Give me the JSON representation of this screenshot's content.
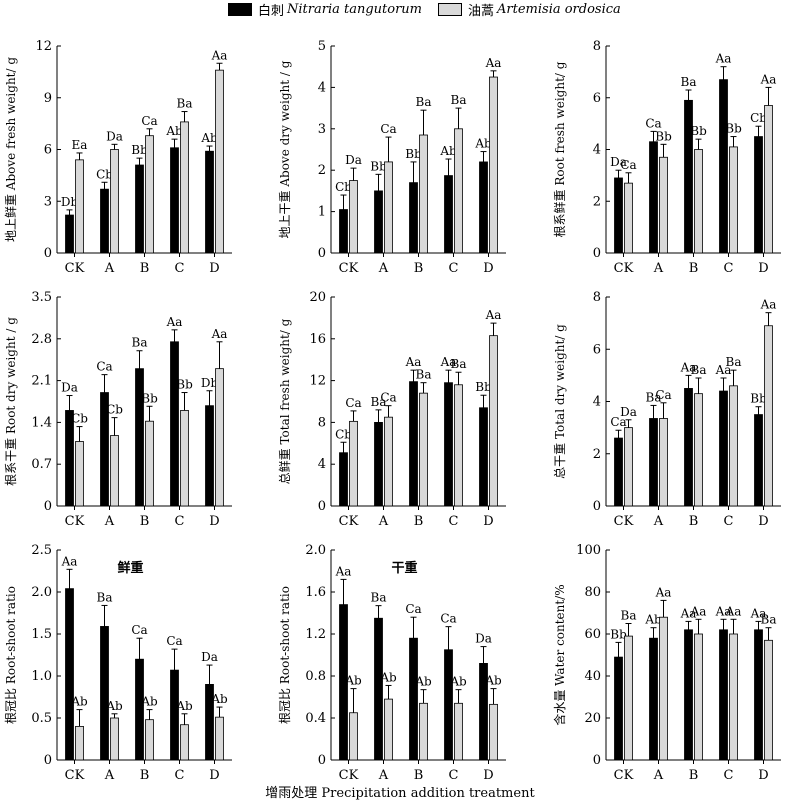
{
  "legend": {
    "series1_cn": "白刺",
    "series1_latin": "Nitraria tangutorum",
    "series2_cn": "油蒿",
    "series2_latin": "Artemisia ordosica"
  },
  "xaxis_title": "增雨处理 Precipitation addition treatment",
  "colors": {
    "series1": "#000000",
    "series2": "#d9d9d9"
  },
  "chart_data": [
    {
      "type": "bar",
      "ylabel": "地上鲜重 Above fresh weight/ g",
      "categories": [
        "CK",
        "A",
        "B",
        "C",
        "D"
      ],
      "ylim": [
        0,
        12
      ],
      "yticks": [
        "0",
        "3",
        "6",
        "9",
        "12"
      ],
      "series": [
        {
          "name": "白刺 Nitraria tangutorum",
          "values": [
            2.2,
            3.7,
            5.1,
            6.1,
            5.9
          ],
          "errors": [
            0.3,
            0.4,
            0.4,
            0.5,
            0.3
          ],
          "labels": [
            "Db",
            "Cb",
            "Bb",
            "Ab",
            "Ab"
          ]
        },
        {
          "name": "油蒿 Artemisia ordosica",
          "values": [
            5.4,
            6.0,
            6.8,
            7.6,
            10.6
          ],
          "errors": [
            0.4,
            0.3,
            0.4,
            0.6,
            0.4
          ],
          "labels": [
            "Ea",
            "Da",
            "Ca",
            "Ba",
            "Aa"
          ]
        }
      ]
    },
    {
      "type": "bar",
      "ylabel": "地上干重 Above dry weight / g",
      "categories": [
        "CK",
        "A",
        "B",
        "C",
        "D"
      ],
      "ylim": [
        0,
        5
      ],
      "yticks": [
        "0",
        "1",
        "2",
        "3",
        "4",
        "5"
      ],
      "series": [
        {
          "name": "白刺 Nitraria tangutorum",
          "values": [
            1.05,
            1.5,
            1.7,
            1.87,
            2.2
          ],
          "errors": [
            0.35,
            0.4,
            0.5,
            0.4,
            0.25
          ],
          "labels": [
            "Cb",
            "Bb",
            "Bb",
            "Ab",
            "Ab"
          ]
        },
        {
          "name": "油蒿 Artemisia ordosica",
          "values": [
            1.75,
            2.2,
            2.85,
            3.0,
            4.25
          ],
          "errors": [
            0.3,
            0.6,
            0.6,
            0.5,
            0.15
          ],
          "labels": [
            "Da",
            "Ca",
            "Ba",
            "Ba",
            "Aa"
          ]
        }
      ]
    },
    {
      "type": "bar",
      "ylabel": "根系鲜重 Root fresh weight/ g",
      "categories": [
        "CK",
        "A",
        "B",
        "C",
        "D"
      ],
      "ylim": [
        0,
        8
      ],
      "yticks": [
        "0",
        "2",
        "4",
        "6",
        "8"
      ],
      "series": [
        {
          "name": "白刺 Nitraria tangutorum",
          "values": [
            2.9,
            4.3,
            5.9,
            6.7,
            4.5
          ],
          "errors": [
            0.3,
            0.4,
            0.4,
            0.5,
            0.4
          ],
          "labels": [
            "Da",
            "Ca",
            "Ba",
            "Aa",
            "Cb"
          ]
        },
        {
          "name": "油蒿 Artemisia ordosica",
          "values": [
            2.7,
            3.7,
            4.0,
            4.1,
            5.7
          ],
          "errors": [
            0.4,
            0.5,
            0.4,
            0.4,
            0.7
          ],
          "labels": [
            "Ca",
            "Bb",
            "Bb",
            "Bb",
            "Aa"
          ]
        }
      ]
    },
    {
      "type": "bar",
      "ylabel": "根系干重 Root dry weight / g",
      "categories": [
        "CK",
        "A",
        "B",
        "C",
        "D"
      ],
      "ylim": [
        0,
        3.5
      ],
      "yticks": [
        "0",
        "0.7",
        "1.4",
        "2.1",
        "2.8",
        "3.5"
      ],
      "series": [
        {
          "name": "白刺 Nitraria tangutorum",
          "values": [
            1.6,
            1.9,
            2.3,
            2.75,
            1.68
          ],
          "errors": [
            0.25,
            0.3,
            0.3,
            0.2,
            0.25
          ],
          "labels": [
            "Da",
            "Ca",
            "Ba",
            "Aa",
            "Db"
          ]
        },
        {
          "name": "油蒿 Artemisia ordosica",
          "values": [
            1.08,
            1.18,
            1.42,
            1.6,
            2.3
          ],
          "errors": [
            0.25,
            0.3,
            0.25,
            0.3,
            0.45
          ],
          "labels": [
            "Cb",
            "Cb",
            "Bb",
            "Bb",
            "Aa"
          ]
        }
      ]
    },
    {
      "type": "bar",
      "ylabel": "总鲜重 Total fresh weight/ g",
      "categories": [
        "CK",
        "A",
        "B",
        "C",
        "D"
      ],
      "ylim": [
        0,
        20
      ],
      "yticks": [
        "0",
        "4",
        "8",
        "12",
        "16",
        "20"
      ],
      "series": [
        {
          "name": "白刺 Nitraria tangutorum",
          "values": [
            5.1,
            8.0,
            11.9,
            11.8,
            9.4
          ],
          "errors": [
            1.0,
            1.2,
            1.1,
            1.2,
            1.2
          ],
          "labels": [
            "Cb",
            "Ba",
            "Aa",
            "Aa",
            "Bb"
          ]
        },
        {
          "name": "油蒿 Artemisia ordosica",
          "values": [
            8.1,
            8.5,
            10.8,
            11.6,
            16.3
          ],
          "errors": [
            1.0,
            1.1,
            1.0,
            1.2,
            1.2
          ],
          "labels": [
            "Ca",
            "Ca",
            "Ba",
            "Ba",
            "Aa"
          ]
        }
      ]
    },
    {
      "type": "bar",
      "ylabel": "总干重 Total dry weight/ g",
      "categories": [
        "CK",
        "A",
        "B",
        "C",
        "D"
      ],
      "ylim": [
        0,
        8
      ],
      "yticks": [
        "0",
        "2",
        "4",
        "6",
        "8"
      ],
      "series": [
        {
          "name": "白刺 Nitraria tangutorum",
          "values": [
            2.6,
            3.35,
            4.5,
            4.4,
            3.5
          ],
          "errors": [
            0.3,
            0.5,
            0.5,
            0.5,
            0.3
          ],
          "labels": [
            "Ca",
            "Ba",
            "Aa",
            "Aa",
            "Bb"
          ]
        },
        {
          "name": "油蒿 Artemisia ordosica",
          "values": [
            3.0,
            3.35,
            4.3,
            4.6,
            6.9
          ],
          "errors": [
            0.3,
            0.6,
            0.6,
            0.6,
            0.5
          ],
          "labels": [
            "Da",
            "Ca",
            "Ba",
            "Ba",
            "Aa"
          ]
        }
      ]
    },
    {
      "type": "bar",
      "ylabel": "根冠比 Root-shoot ratio",
      "title": "鲜重",
      "categories": [
        "CK",
        "A",
        "B",
        "C",
        "D"
      ],
      "ylim": [
        0,
        2.5
      ],
      "yticks": [
        "0",
        "0.5",
        "1.0",
        "1.5",
        "2.0",
        "2.5"
      ],
      "series": [
        {
          "name": "白刺 Nitraria tangutorum",
          "values": [
            2.04,
            1.59,
            1.2,
            1.07,
            0.9
          ],
          "errors": [
            0.23,
            0.25,
            0.25,
            0.25,
            0.23
          ],
          "labels": [
            "Aa",
            "Ba",
            "Ca",
            "Ca",
            "Da"
          ]
        },
        {
          "name": "油蒿 Artemisia ordosica",
          "values": [
            0.4,
            0.5,
            0.48,
            0.42,
            0.51
          ],
          "errors": [
            0.2,
            0.05,
            0.12,
            0.13,
            0.12
          ],
          "labels": [
            "Ab",
            "Ab",
            "Ab",
            "Ab",
            "Ab"
          ]
        }
      ]
    },
    {
      "type": "bar",
      "ylabel": "根冠比 Root-shoot ratio",
      "title": "干重",
      "categories": [
        "CK",
        "A",
        "B",
        "C",
        "D"
      ],
      "ylim": [
        0,
        2.0
      ],
      "yticks": [
        "0",
        "0.4",
        "0.8",
        "1.2",
        "1.6",
        "2.0"
      ],
      "series": [
        {
          "name": "白刺 Nitraria tangutorum",
          "values": [
            1.48,
            1.35,
            1.16,
            1.05,
            0.92
          ],
          "errors": [
            0.24,
            0.12,
            0.2,
            0.22,
            0.16
          ],
          "labels": [
            "Aa",
            "Ba",
            "Ca",
            "Ca",
            "Da"
          ]
        },
        {
          "name": "油蒿 Artemisia ordosica",
          "values": [
            0.45,
            0.58,
            0.54,
            0.54,
            0.53
          ],
          "errors": [
            0.23,
            0.13,
            0.13,
            0.13,
            0.15
          ],
          "labels": [
            "Ab",
            "Ab",
            "Ab",
            "Ab",
            "Ab"
          ]
        }
      ]
    },
    {
      "type": "bar",
      "ylabel": "含水量 Water content/%",
      "categories": [
        "CK",
        "A",
        "B",
        "C",
        "D"
      ],
      "ylim": [
        0,
        100
      ],
      "yticks": [
        "0",
        "20",
        "40",
        "60",
        "80",
        "100"
      ],
      "series": [
        {
          "name": "白刺 Nitraria tangutorum",
          "values": [
            49,
            58,
            62,
            62,
            62
          ],
          "errors": [
            7,
            5,
            4,
            5,
            4
          ],
          "labels": [
            "Bb",
            "Ab",
            "Aa",
            "Aa",
            "Aa"
          ]
        },
        {
          "name": "油蒿 Artemisia ordosica",
          "values": [
            59,
            68,
            60,
            60,
            57
          ],
          "errors": [
            6,
            8,
            7,
            7,
            6
          ],
          "labels": [
            "Ba",
            "Aa",
            "Aa",
            "Aa",
            "Ba"
          ]
        }
      ]
    }
  ]
}
